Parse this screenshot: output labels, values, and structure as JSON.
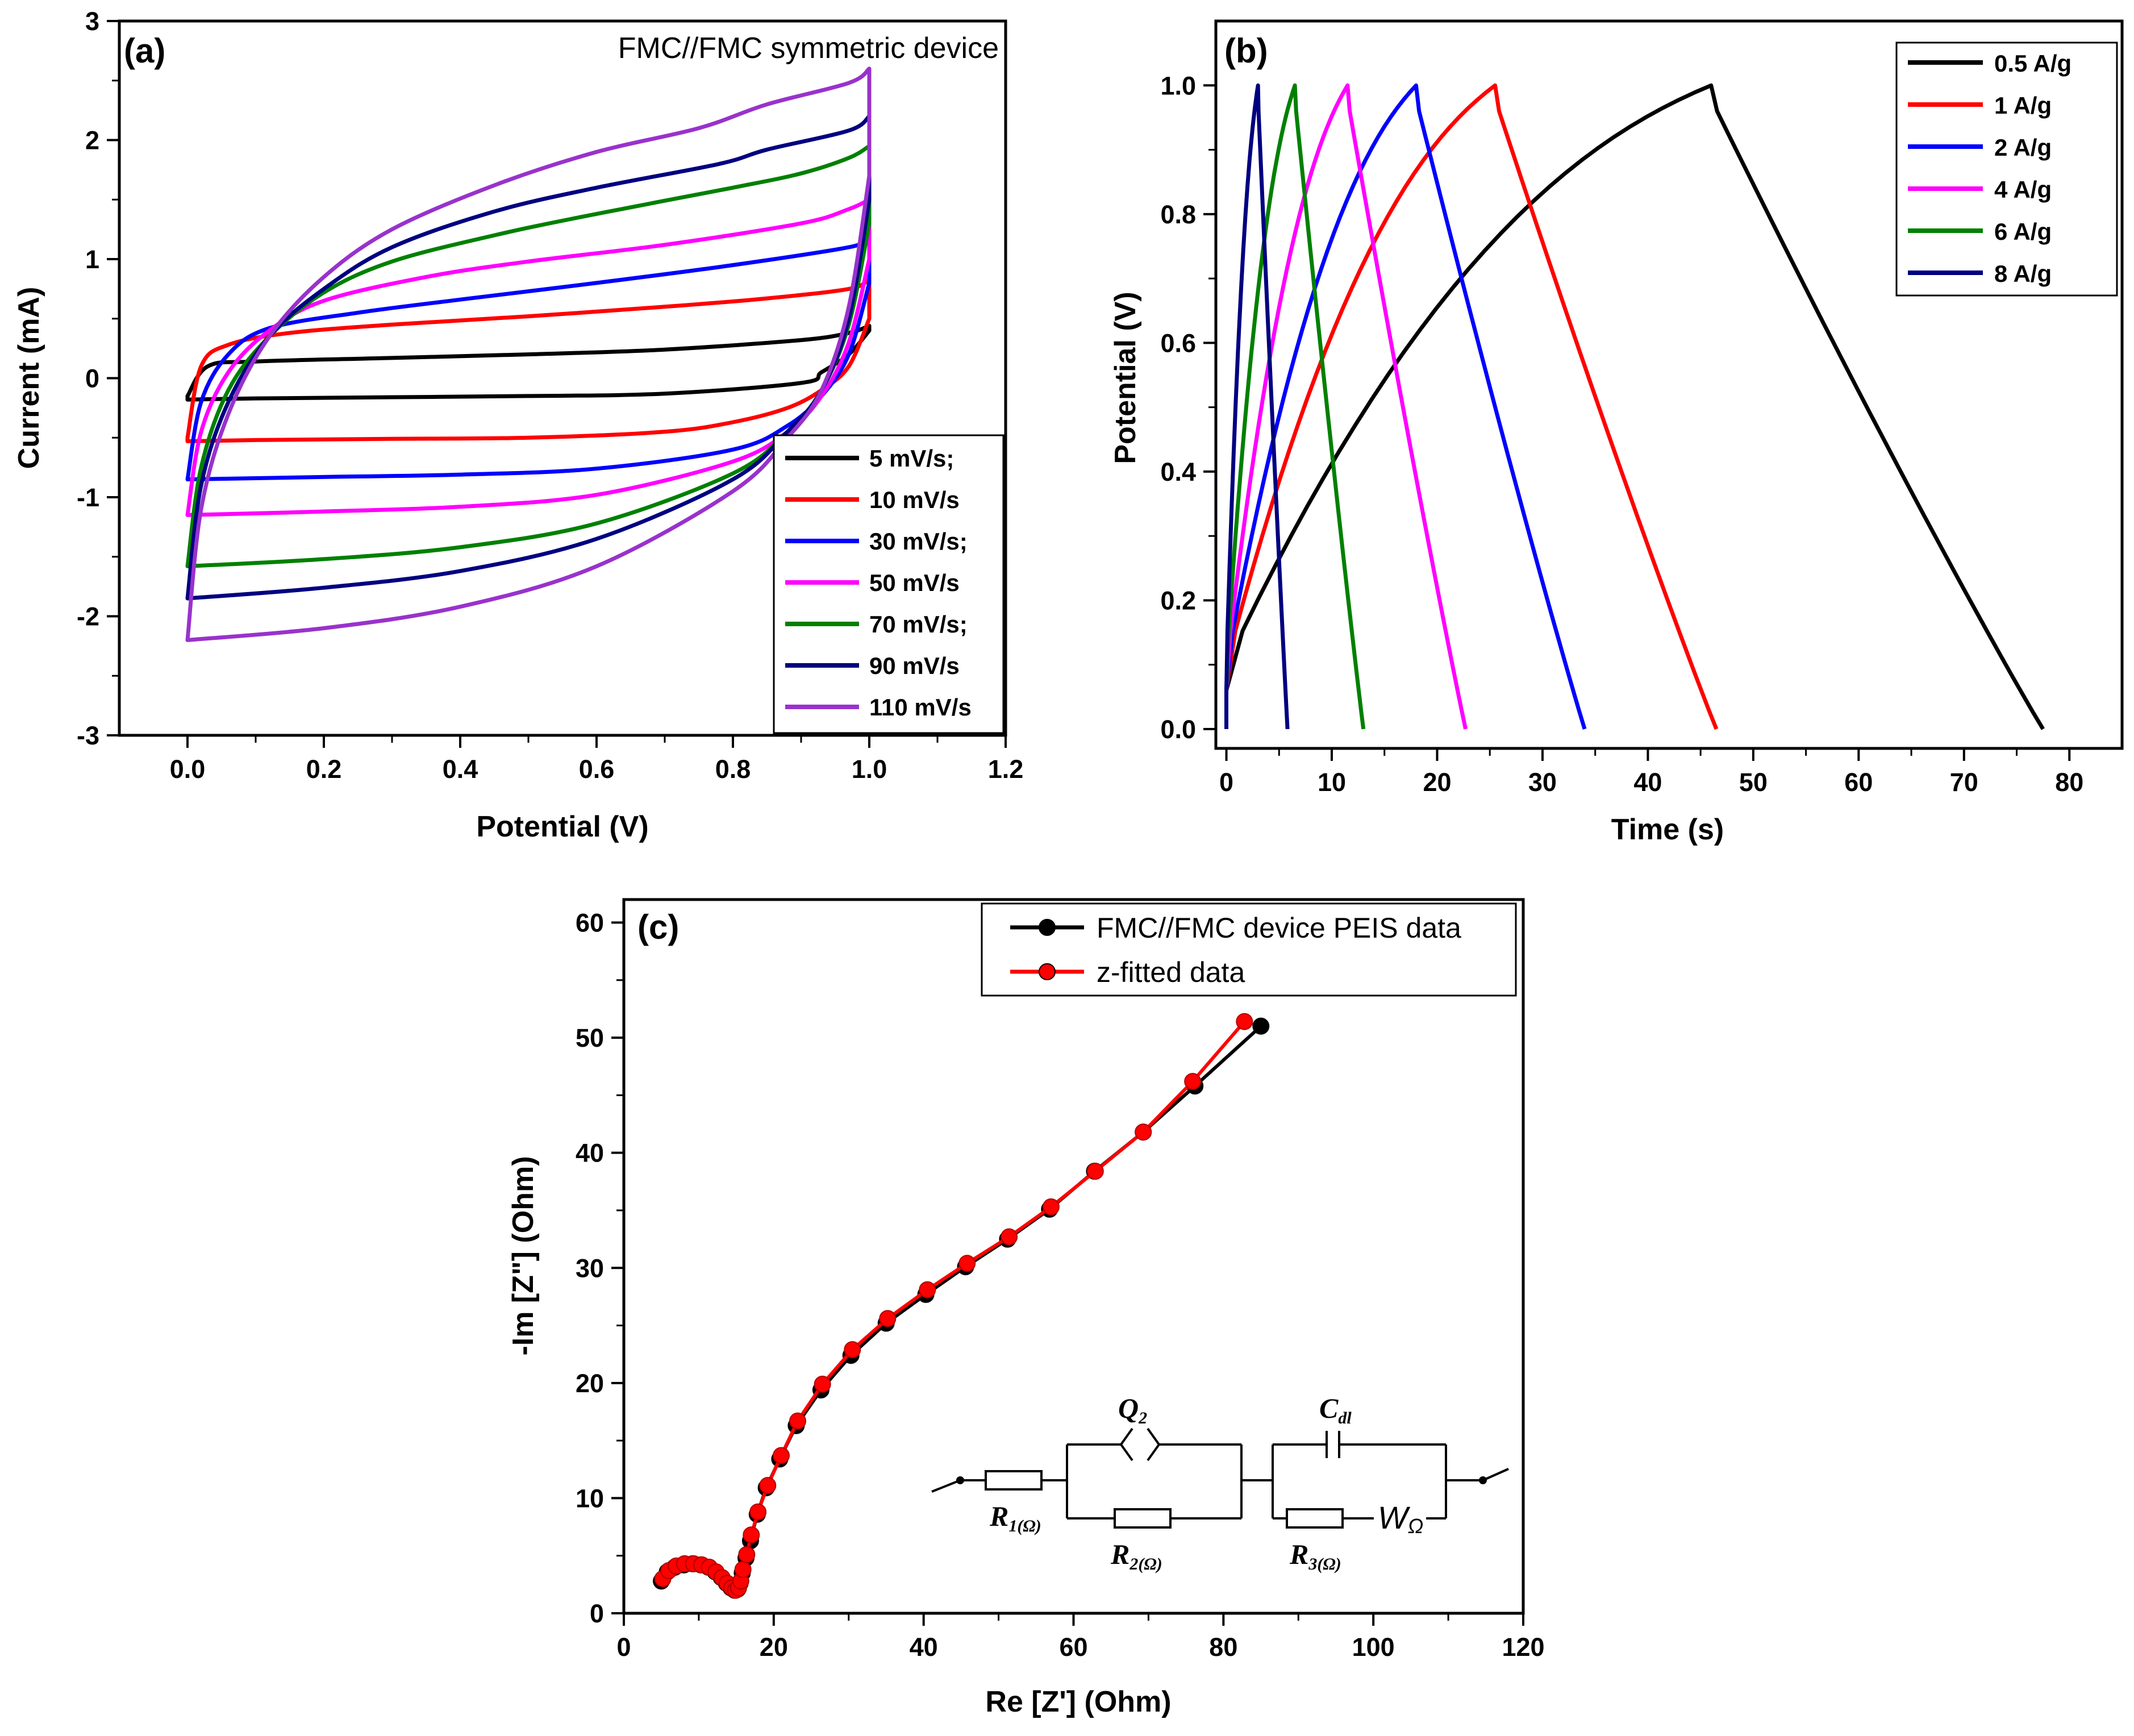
{
  "chart_data": [
    {
      "id": "a",
      "type": "line",
      "panel_label": "(a)",
      "annotation": "FMC//FMC symmetric device",
      "xlabel": "Potential (V)",
      "ylabel": "Current (mA)",
      "xlim": [
        -0.1,
        1.2
      ],
      "ylim": [
        -3,
        3
      ],
      "xticks": [
        "0.0",
        "0.2",
        "0.4",
        "0.6",
        "0.8",
        "1.0",
        "1.2"
      ],
      "xtick_values": [
        0,
        0.2,
        0.4,
        0.6,
        0.8,
        1.0,
        1.2
      ],
      "yticks": [
        "-3",
        "-2",
        "-1",
        "0",
        "1",
        "2",
        "3"
      ],
      "ytick_values": [
        -3,
        -2,
        -1,
        0,
        1,
        2,
        3
      ],
      "legend_position": "bottom-right",
      "series": [
        {
          "name": "5 mV/s;",
          "color": "#000000",
          "upper": [
            [
              0,
              -0.15
            ],
            [
              0.03,
              0.1
            ],
            [
              0.1,
              0.14
            ],
            [
              0.3,
              0.17
            ],
            [
              0.5,
              0.2
            ],
            [
              0.7,
              0.24
            ],
            [
              0.9,
              0.32
            ],
            [
              0.97,
              0.38
            ],
            [
              1.0,
              0.44
            ]
          ],
          "lower": [
            [
              1.0,
              0.4
            ],
            [
              0.97,
              0.2
            ],
            [
              0.93,
              0.05
            ],
            [
              0.9,
              -0.04
            ],
            [
              0.7,
              -0.13
            ],
            [
              0.5,
              -0.15
            ],
            [
              0.3,
              -0.16
            ],
            [
              0.1,
              -0.17
            ],
            [
              0,
              -0.18
            ]
          ]
        },
        {
          "name": "10 mV/s",
          "color": "#ff0000",
          "upper": [
            [
              0,
              -0.5
            ],
            [
              0.02,
              0.1
            ],
            [
              0.06,
              0.28
            ],
            [
              0.15,
              0.38
            ],
            [
              0.3,
              0.45
            ],
            [
              0.5,
              0.52
            ],
            [
              0.7,
              0.6
            ],
            [
              0.85,
              0.67
            ],
            [
              0.97,
              0.75
            ],
            [
              1.0,
              0.83
            ]
          ],
          "lower": [
            [
              1.0,
              0.5
            ],
            [
              0.97,
              0.1
            ],
            [
              0.93,
              -0.1
            ],
            [
              0.88,
              -0.25
            ],
            [
              0.8,
              -0.37
            ],
            [
              0.7,
              -0.45
            ],
            [
              0.5,
              -0.5
            ],
            [
              0.3,
              -0.51
            ],
            [
              0.1,
              -0.52
            ],
            [
              0,
              -0.53
            ]
          ]
        },
        {
          "name": "30 mV/s;",
          "color": "#0000ff",
          "upper": [
            [
              0,
              -0.85
            ],
            [
              0.02,
              -0.2
            ],
            [
              0.06,
              0.2
            ],
            [
              0.12,
              0.42
            ],
            [
              0.25,
              0.55
            ],
            [
              0.4,
              0.66
            ],
            [
              0.6,
              0.8
            ],
            [
              0.8,
              0.95
            ],
            [
              0.97,
              1.1
            ],
            [
              1.0,
              1.18
            ]
          ],
          "lower": [
            [
              1.0,
              0.8
            ],
            [
              0.97,
              0.2
            ],
            [
              0.93,
              -0.15
            ],
            [
              0.88,
              -0.4
            ],
            [
              0.8,
              -0.6
            ],
            [
              0.6,
              -0.76
            ],
            [
              0.4,
              -0.81
            ],
            [
              0.2,
              -0.83
            ],
            [
              0,
              -0.85
            ]
          ]
        },
        {
          "name": "50 mV/s",
          "color": "#ff00ff",
          "upper": [
            [
              0,
              -1.15
            ],
            [
              0.02,
              -0.45
            ],
            [
              0.06,
              0.05
            ],
            [
              0.12,
              0.4
            ],
            [
              0.2,
              0.65
            ],
            [
              0.35,
              0.85
            ],
            [
              0.5,
              0.98
            ],
            [
              0.7,
              1.12
            ],
            [
              0.9,
              1.3
            ],
            [
              0.97,
              1.42
            ],
            [
              1.0,
              1.5
            ]
          ],
          "lower": [
            [
              1.0,
              1.0
            ],
            [
              0.97,
              0.3
            ],
            [
              0.93,
              -0.15
            ],
            [
              0.88,
              -0.45
            ],
            [
              0.8,
              -0.7
            ],
            [
              0.6,
              -0.98
            ],
            [
              0.4,
              -1.08
            ],
            [
              0.2,
              -1.12
            ],
            [
              0,
              -1.15
            ]
          ]
        },
        {
          "name": "70 mV/s;",
          "color": "#008000",
          "upper": [
            [
              0,
              -1.58
            ],
            [
              0.02,
              -0.75
            ],
            [
              0.06,
              -0.1
            ],
            [
              0.12,
              0.35
            ],
            [
              0.2,
              0.72
            ],
            [
              0.3,
              0.98
            ],
            [
              0.45,
              1.2
            ],
            [
              0.6,
              1.38
            ],
            [
              0.8,
              1.6
            ],
            [
              0.9,
              1.72
            ],
            [
              0.97,
              1.85
            ],
            [
              1.0,
              1.95
            ]
          ],
          "lower": [
            [
              1.0,
              1.3
            ],
            [
              0.97,
              0.45
            ],
            [
              0.93,
              -0.1
            ],
            [
              0.88,
              -0.45
            ],
            [
              0.8,
              -0.8
            ],
            [
              0.6,
              -1.22
            ],
            [
              0.4,
              -1.42
            ],
            [
              0.2,
              -1.52
            ],
            [
              0,
              -1.58
            ]
          ]
        },
        {
          "name": "90 mV/s",
          "color": "#000080",
          "upper": [
            [
              0,
              -1.85
            ],
            [
              0.02,
              -0.9
            ],
            [
              0.06,
              -0.2
            ],
            [
              0.12,
              0.35
            ],
            [
              0.2,
              0.75
            ],
            [
              0.3,
              1.1
            ],
            [
              0.45,
              1.4
            ],
            [
              0.6,
              1.6
            ],
            [
              0.78,
              1.8
            ],
            [
              0.85,
              1.92
            ],
            [
              0.97,
              2.08
            ],
            [
              1.0,
              2.2
            ]
          ],
          "lower": [
            [
              1.0,
              1.5
            ],
            [
              0.97,
              0.5
            ],
            [
              0.93,
              -0.1
            ],
            [
              0.88,
              -0.45
            ],
            [
              0.8,
              -0.85
            ],
            [
              0.6,
              -1.35
            ],
            [
              0.4,
              -1.62
            ],
            [
              0.2,
              -1.76
            ],
            [
              0,
              -1.85
            ]
          ]
        },
        {
          "name": "110 mV/s",
          "color": "#9932cc",
          "upper": [
            [
              0,
              -2.2
            ],
            [
              0.02,
              -1.1
            ],
            [
              0.06,
              -0.3
            ],
            [
              0.12,
              0.35
            ],
            [
              0.2,
              0.85
            ],
            [
              0.3,
              1.25
            ],
            [
              0.45,
              1.62
            ],
            [
              0.6,
              1.9
            ],
            [
              0.75,
              2.1
            ],
            [
              0.85,
              2.3
            ],
            [
              0.97,
              2.48
            ],
            [
              1.0,
              2.6
            ]
          ],
          "lower": [
            [
              1.0,
              1.7
            ],
            [
              0.97,
              0.6
            ],
            [
              0.93,
              -0.1
            ],
            [
              0.88,
              -0.5
            ],
            [
              0.8,
              -0.95
            ],
            [
              0.6,
              -1.58
            ],
            [
              0.4,
              -1.92
            ],
            [
              0.2,
              -2.1
            ],
            [
              0,
              -2.2
            ]
          ]
        }
      ]
    },
    {
      "id": "b",
      "type": "line",
      "panel_label": "(b)",
      "xlabel": "Time (s)",
      "ylabel": "Potential (V)",
      "xlim": [
        -1,
        85
      ],
      "ylim": [
        -0.03,
        1.1
      ],
      "xticks": [
        "0",
        "10",
        "20",
        "30",
        "40",
        "50",
        "60",
        "70",
        "80"
      ],
      "xtick_values": [
        0,
        10,
        20,
        30,
        40,
        50,
        60,
        70,
        80
      ],
      "yticks": [
        "0.0",
        "0.2",
        "0.4",
        "0.6",
        "0.8",
        "1.0"
      ],
      "ytick_values": [
        0,
        0.2,
        0.4,
        0.6,
        0.8,
        1.0
      ],
      "legend_position": "top-right",
      "series": [
        {
          "name": "0.5 A/g",
          "color": "#000000",
          "t_charge_end": 46,
          "t_end": 77.5
        },
        {
          "name": "1 A/g",
          "color": "#ff0000",
          "t_charge_end": 25.5,
          "t_end": 46.5
        },
        {
          "name": "2 A/g",
          "color": "#0000ff",
          "t_charge_end": 18,
          "t_end": 34
        },
        {
          "name": "4 A/g",
          "color": "#ff00ff",
          "t_charge_end": 11.5,
          "t_end": 22.7
        },
        {
          "name": "6 A/g",
          "color": "#008000",
          "t_charge_end": 6.5,
          "t_end": 13
        },
        {
          "name": "8 A/g",
          "color": "#000080",
          "t_charge_end": 3,
          "t_end": 5.8
        }
      ]
    },
    {
      "id": "c",
      "type": "scatter",
      "panel_label": "(c)",
      "xlabel": "Re [Z'] (Ohm)",
      "ylabel": "-Im [Z\"] (Ohm)",
      "xlim": [
        0,
        120
      ],
      "ylim": [
        0,
        62
      ],
      "xticks": [
        "0",
        "20",
        "40",
        "60",
        "80",
        "100",
        "120"
      ],
      "xtick_values": [
        0,
        20,
        40,
        60,
        80,
        100,
        120
      ],
      "yticks": [
        "0",
        "10",
        "20",
        "30",
        "40",
        "50",
        "60"
      ],
      "ytick_values": [
        0,
        10,
        20,
        30,
        40,
        50,
        60
      ],
      "legend_position": "top-right",
      "series": [
        {
          "name": "FMC//FMC device PEIS data",
          "color": "#000000",
          "points": [
            [
              5,
              2.8
            ],
            [
              5.8,
              3.6
            ],
            [
              6.8,
              4.0
            ],
            [
              8,
              4.2
            ],
            [
              9.2,
              4.3
            ],
            [
              10.3,
              4.2
            ],
            [
              11.3,
              4.0
            ],
            [
              12.2,
              3.6
            ],
            [
              13,
              3.1
            ],
            [
              13.7,
              2.6
            ],
            [
              14.3,
              2.2
            ],
            [
              14.8,
              2.0
            ],
            [
              15.2,
              2.1
            ],
            [
              15.5,
              2.6
            ],
            [
              15.8,
              3.5
            ],
            [
              16.3,
              4.8
            ],
            [
              16.9,
              6.3
            ],
            [
              17.8,
              8.6
            ],
            [
              19,
              10.9
            ],
            [
              20.8,
              13.4
            ],
            [
              23,
              16.3
            ],
            [
              26.3,
              19.4
            ],
            [
              30.3,
              22.4
            ],
            [
              35,
              25.2
            ],
            [
              40.3,
              27.7
            ],
            [
              45.6,
              30.1
            ],
            [
              51.2,
              32.5
            ],
            [
              56.8,
              35.1
            ],
            [
              62.8,
              38.4
            ],
            [
              69.3,
              41.8
            ],
            [
              76.2,
              45.8
            ],
            [
              85,
              51
            ]
          ]
        },
        {
          "name": "z-fitted data",
          "color": "#ff0000",
          "points": [
            [
              5.2,
              3.0
            ],
            [
              6.0,
              3.7
            ],
            [
              7.0,
              4.1
            ],
            [
              8.1,
              4.3
            ],
            [
              9.3,
              4.3
            ],
            [
              10.4,
              4.2
            ],
            [
              11.4,
              4.0
            ],
            [
              12.3,
              3.6
            ],
            [
              13.1,
              3.1
            ],
            [
              13.8,
              2.6
            ],
            [
              14.4,
              2.2
            ],
            [
              14.9,
              2.0
            ],
            [
              15.3,
              2.2
            ],
            [
              15.6,
              2.8
            ],
            [
              15.9,
              3.8
            ],
            [
              16.4,
              5.1
            ],
            [
              17.0,
              6.8
            ],
            [
              17.9,
              8.8
            ],
            [
              19.2,
              11.1
            ],
            [
              21,
              13.7
            ],
            [
              23.2,
              16.7
            ],
            [
              26.5,
              19.9
            ],
            [
              30.5,
              22.9
            ],
            [
              35.2,
              25.6
            ],
            [
              40.5,
              28.1
            ],
            [
              45.8,
              30.4
            ],
            [
              51.4,
              32.7
            ],
            [
              57.0,
              35.3
            ],
            [
              62.9,
              38.4
            ],
            [
              69.3,
              41.8
            ],
            [
              75.9,
              46.2
            ],
            [
              82.8,
              51.4
            ]
          ]
        }
      ],
      "circuit": {
        "r1": "R",
        "r1_sub": "1(Ω)",
        "q2": "Q",
        "q2_sub": "2",
        "r2": "R",
        "r2_sub": "2(Ω)",
        "cdl": "C",
        "cdl_sub": "dl",
        "r3": "R",
        "r3_sub": "3(Ω)",
        "w": "W",
        "w_sub": "Ω"
      }
    }
  ]
}
